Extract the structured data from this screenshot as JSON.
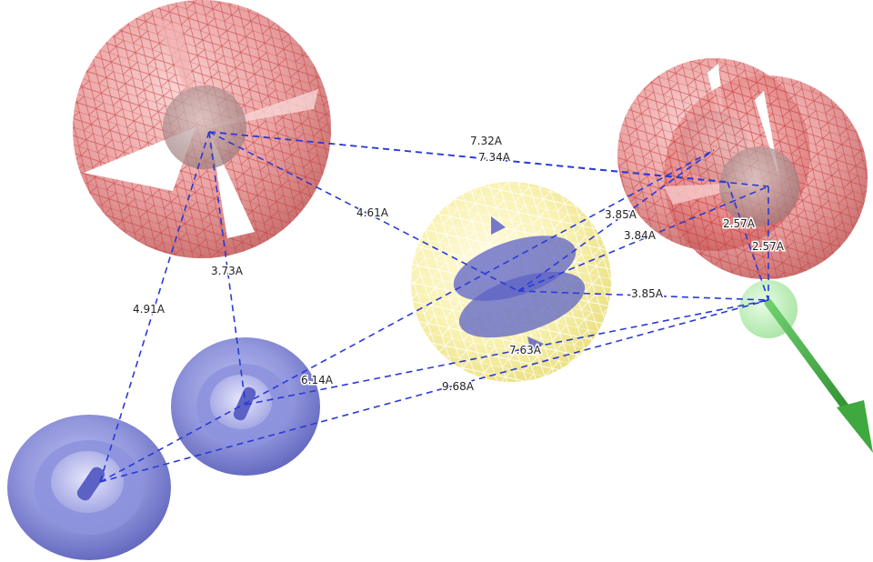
{
  "scene": {
    "background": "#ffffff",
    "colors": {
      "acceptor_sphere": "#e06a6a",
      "acceptor_mesh": "#c83c3c",
      "aromatic_sphere": "#f6ee9a",
      "aromatic_mesh": "#e0d24a",
      "donor_torus": "#5c62c4",
      "distance_line": "#2a3ad6",
      "direction_arrow": "#39a83b",
      "hydrophobic_sphere": "#9fe39a"
    },
    "features": [
      {
        "id": "acceptor-1",
        "kind": "acceptor",
        "icon": "mesh-sphere"
      },
      {
        "id": "acceptor-2",
        "kind": "acceptor",
        "icon": "mesh-sphere"
      },
      {
        "id": "acceptor-3",
        "kind": "acceptor",
        "icon": "mesh-sphere"
      },
      {
        "id": "aromatic-1",
        "kind": "aromatic",
        "icon": "mesh-sphere"
      },
      {
        "id": "donor-1",
        "kind": "donor",
        "icon": "torus"
      },
      {
        "id": "donor-2",
        "kind": "donor",
        "icon": "torus"
      },
      {
        "id": "hydrophobic-1",
        "kind": "hydrophobic",
        "icon": "sphere"
      }
    ],
    "distances": [
      {
        "label": "7.32A"
      },
      {
        "label": "7.34A"
      },
      {
        "label": "4.61A"
      },
      {
        "label": "3.85A"
      },
      {
        "label": "3.84A"
      },
      {
        "label": "2.57A"
      },
      {
        "label": "2.57A"
      },
      {
        "label": "3.85A"
      },
      {
        "label": "3.73A"
      },
      {
        "label": "4.91A"
      },
      {
        "label": "7.63A"
      },
      {
        "label": "6.14A"
      },
      {
        "label": "9.68A"
      }
    ]
  }
}
